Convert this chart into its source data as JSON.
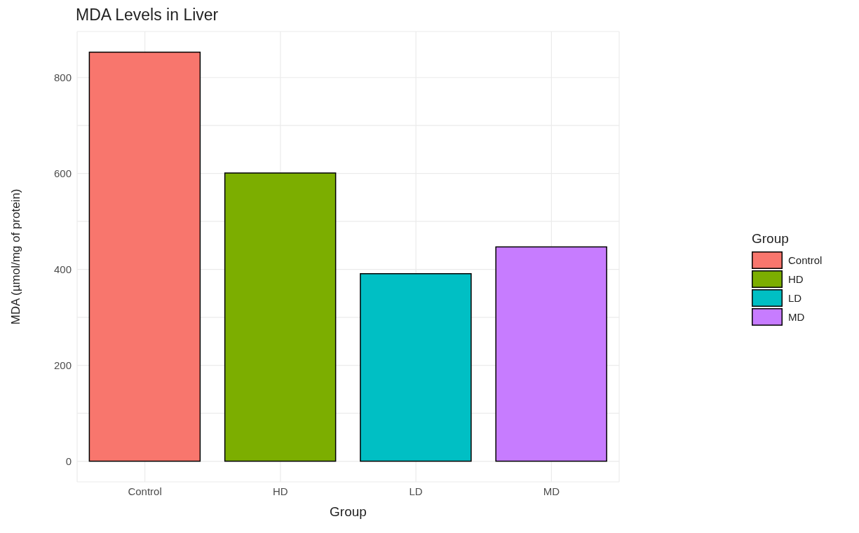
{
  "chart_data": {
    "type": "bar",
    "title": "MDA Levels in Liver",
    "xlabel": "Group",
    "ylabel": "MDA (µmol/mg of protein)",
    "legend_title": "Group",
    "categories": [
      "Control",
      "HD",
      "LD",
      "MD"
    ],
    "series": [
      {
        "name": "Control",
        "color": "#f8766d",
        "values": [
          853,
          null,
          null,
          null
        ]
      },
      {
        "name": "HD",
        "color": "#7cae00",
        "values": [
          null,
          601,
          null,
          null
        ]
      },
      {
        "name": "LD",
        "color": "#00bfc4",
        "values": [
          null,
          null,
          391,
          null
        ]
      },
      {
        "name": "MD",
        "color": "#c77cff",
        "values": [
          null,
          null,
          null,
          447
        ]
      }
    ],
    "ylim": [
      -43,
      896
    ],
    "yticks": [
      0,
      {
        "value": 100,
        "label": null
      },
      200,
      {
        "value": 300,
        "label": null
      },
      400,
      {
        "value": 500,
        "label": null
      },
      600,
      {
        "value": 700,
        "label": null
      },
      800
    ],
    "grid": true,
    "legend": "right"
  }
}
